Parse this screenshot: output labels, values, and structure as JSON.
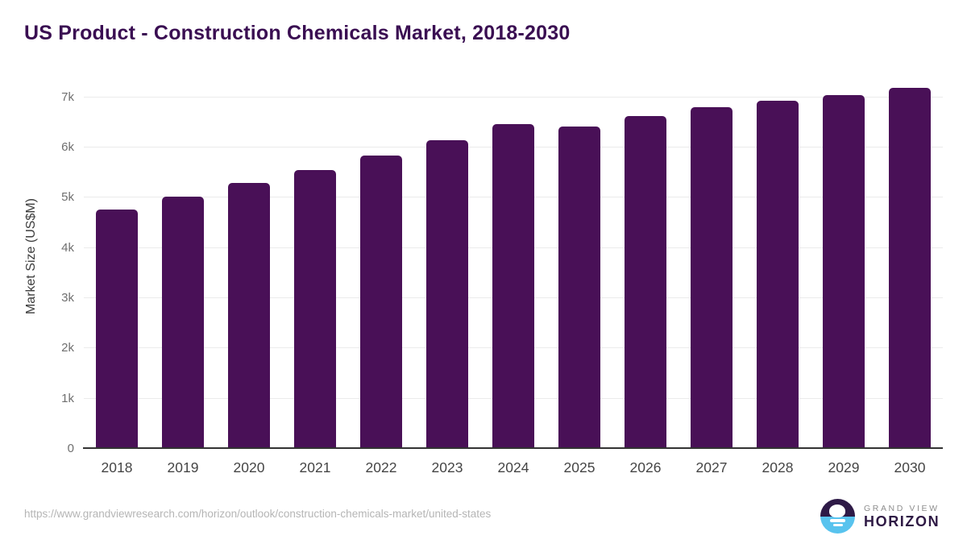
{
  "chart_data": {
    "type": "bar",
    "title": "US Product - Construction Chemicals Market, 2018-2030",
    "ylabel": "Market Size (US$M)",
    "categories": [
      "2018",
      "2019",
      "2020",
      "2021",
      "2022",
      "2023",
      "2024",
      "2025",
      "2026",
      "2027",
      "2028",
      "2029",
      "2030"
    ],
    "values": [
      4770,
      5025,
      5285,
      5545,
      5835,
      6145,
      6470,
      6420,
      6625,
      6800,
      6935,
      7040,
      7180
    ],
    "yticks": [
      0,
      1000,
      2000,
      3000,
      4000,
      5000,
      6000,
      7000
    ],
    "ytick_labels": [
      "0",
      "1k",
      "2k",
      "3k",
      "4k",
      "5k",
      "6k",
      "7k"
    ],
    "ylim": [
      0,
      7420
    ],
    "grid": true,
    "legend": "none",
    "bar_color": "#491057"
  },
  "colors": {
    "title": "#3a0e52",
    "bar": "#491057",
    "gridline": "#ebebeb",
    "axis_line": "#333333",
    "logo_purple": "#2e1a47",
    "logo_blue": "#58c3ee"
  },
  "footer": {
    "source_url": "https://www.grandviewresearch.com/horizon/outlook/construction-chemicals-market/united-states",
    "logo_top": "GRAND VIEW",
    "logo_bottom": "HORIZON"
  }
}
